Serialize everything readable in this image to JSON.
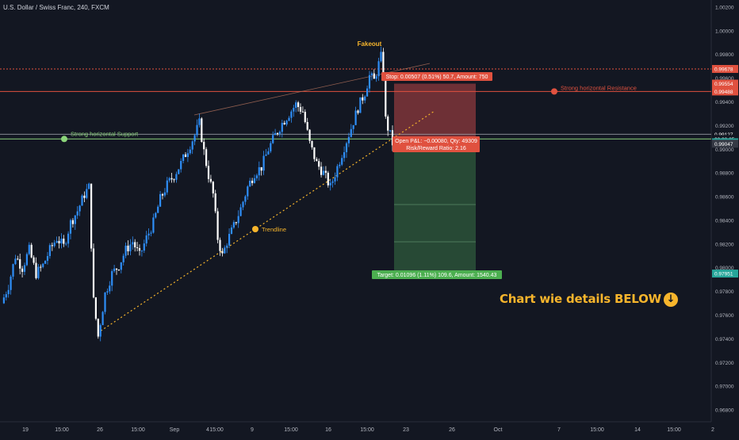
{
  "header": {
    "symbol_title": "U.S. Dollar / Swiss Franc, 240, FXCM"
  },
  "colors": {
    "background": "#131722",
    "candle_up": "#2e8ef7",
    "candle_down": "#ffffff",
    "resistance_line": "#e0513f",
    "support_line": "#8bd47a",
    "trendline": "#f7b52c",
    "stop_zone": "#8e3a3e",
    "target_zone": "#2f5b3c",
    "annotation_text": "#f7b52c"
  },
  "annotations": {
    "fakeout": "Fakeout",
    "strong_resistance": "Strong horizontal Resistance",
    "strong_support": "Strong horizontal Support",
    "trendline": "Trendline",
    "call_to_action": "Chart wie details BELOW",
    "call_to_action_icon": "down-arrow-circle-icon"
  },
  "position": {
    "stop_label": "Stop: 0.00507 (0.51%) 50.7, Amount: 750",
    "open_pnl_label": "Open P&L: −0.00080, Qty: 49309",
    "risk_reward_label": "Risk/Reward Ratio: 2.16",
    "target_label": "Target: 0.01096 (1.11%) 109.6, Amount: 1540.43",
    "entry": 0.99047,
    "stop": 0.99554,
    "target": 0.97951
  },
  "price_tags": [
    {
      "text": "0.99678",
      "value": 0.99678,
      "color": "#e0513f"
    },
    {
      "text": "0.99554",
      "value": 0.99554,
      "color": "#e0513f"
    },
    {
      "text": "0.99488",
      "value": 0.99488,
      "color": "#e0513f"
    },
    {
      "text": "0.99127",
      "value": 0.99127,
      "color": "#131722"
    },
    {
      "text": "03:38:35",
      "value": 0.99087,
      "color": "#131722"
    },
    {
      "text": "0.99059",
      "value": 0.99059,
      "color": "#26a69a"
    },
    {
      "text": "0.99047",
      "value": 0.99047,
      "color": "#363a45"
    },
    {
      "text": "0.97951",
      "value": 0.97951,
      "color": "#26a69a"
    }
  ],
  "chart_data": {
    "type": "candlestick",
    "symbol": "U.S. Dollar / Swiss Franc",
    "interval": "240",
    "source": "FXCM",
    "y_axis_ticks": [
      "1.00200",
      "1.00000",
      "0.99800",
      "0.99600",
      "0.99400",
      "0.99200",
      "0.99000",
      "0.98800",
      "0.98600",
      "0.98400",
      "0.98200",
      "0.98000",
      "0.97800",
      "0.97600",
      "0.97400",
      "0.97200",
      "0.97000",
      "0.96800"
    ],
    "ylim": [
      0.967,
      1.0026
    ],
    "x_axis_ticks": [
      "19",
      "15:00",
      "26",
      "15:00",
      "Sep",
      "4",
      "15:00",
      "9",
      "15:00",
      "16",
      "15:00",
      "23",
      "26",
      "Oct",
      "7",
      "15:00",
      "14",
      "15:00",
      "2"
    ],
    "trend_path": [
      [
        0,
        0.977
      ],
      [
        3,
        0.9785
      ],
      [
        6,
        0.981
      ],
      [
        9,
        0.98
      ],
      [
        12,
        0.9815
      ],
      [
        15,
        0.9795
      ],
      [
        18,
        0.9802
      ],
      [
        21,
        0.9815
      ],
      [
        24,
        0.9825
      ],
      [
        27,
        0.9818
      ],
      [
        30,
        0.9838
      ],
      [
        33,
        0.9848
      ],
      [
        36,
        0.9862
      ],
      [
        38,
        0.9868
      ],
      [
        40,
        0.9772
      ],
      [
        42,
        0.9742
      ],
      [
        45,
        0.9778
      ],
      [
        48,
        0.9795
      ],
      [
        51,
        0.9802
      ],
      [
        54,
        0.9815
      ],
      [
        57,
        0.9822
      ],
      [
        60,
        0.981
      ],
      [
        63,
        0.9825
      ],
      [
        66,
        0.9838
      ],
      [
        69,
        0.9858
      ],
      [
        72,
        0.987
      ],
      [
        75,
        0.9878
      ],
      [
        78,
        0.9888
      ],
      [
        81,
        0.99
      ],
      [
        84,
        0.9912
      ],
      [
        86,
        0.9922
      ],
      [
        88,
        0.9898
      ],
      [
        90,
        0.9878
      ],
      [
        92,
        0.9862
      ],
      [
        94,
        0.9825
      ],
      [
        96,
        0.981
      ],
      [
        98,
        0.9822
      ],
      [
        101,
        0.9835
      ],
      [
        104,
        0.985
      ],
      [
        107,
        0.9868
      ],
      [
        110,
        0.988
      ],
      [
        113,
        0.9885
      ],
      [
        116,
        0.99
      ],
      [
        119,
        0.9912
      ],
      [
        122,
        0.9922
      ],
      [
        125,
        0.993
      ],
      [
        128,
        0.9938
      ],
      [
        131,
        0.9932
      ],
      [
        134,
        0.9905
      ],
      [
        137,
        0.9888
      ],
      [
        140,
        0.988
      ],
      [
        143,
        0.9868
      ],
      [
        146,
        0.9885
      ],
      [
        149,
        0.9902
      ],
      [
        152,
        0.9918
      ],
      [
        155,
        0.9935
      ],
      [
        158,
        0.9948
      ],
      [
        160,
        0.9962
      ],
      [
        162,
        0.9958
      ],
      [
        164,
        0.9972
      ],
      [
        165,
        0.9978
      ],
      [
        166,
        0.9962
      ],
      [
        167,
        0.9925
      ],
      [
        168,
        0.9918
      ],
      [
        169,
        0.9912
      ],
      [
        170,
        0.9905
      ],
      [
        172,
        0.9905
      ]
    ],
    "levels": {
      "resistance": 0.99488,
      "resistance_dashed": 0.99678,
      "support": 0.99087,
      "last_price": 0.99127
    }
  }
}
